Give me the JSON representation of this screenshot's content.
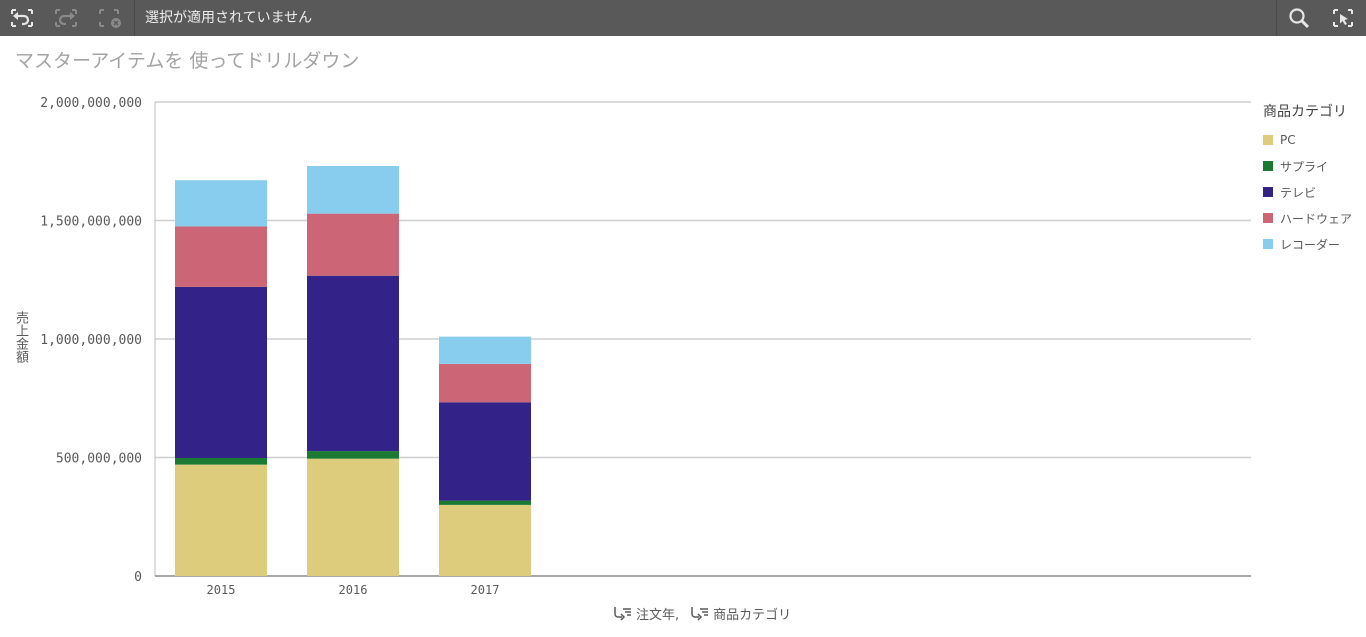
{
  "toolbar": {
    "selections_text": "選択が適用されていません",
    "buttons": [
      "back-step-icon",
      "forward-step-icon",
      "clear-selections-icon",
      "search-icon",
      "selections-tool-icon"
    ]
  },
  "sheet": {
    "title": "マスターアイテムを 使ってドリルダウン"
  },
  "chart_data": {
    "type": "bar",
    "stacked": true,
    "categories": [
      "2015",
      "2016",
      "2017"
    ],
    "series": [
      {
        "name": "PC",
        "color": "#dccc7b",
        "values": [
          470000000,
          495000000,
          300000000
        ]
      },
      {
        "name": "サプライ",
        "color": "#1a7a32",
        "values": [
          28000000,
          32000000,
          18000000
        ]
      },
      {
        "name": "テレビ",
        "color": "#332288",
        "values": [
          722000000,
          740000000,
          415000000
        ]
      },
      {
        "name": "ハードウェア",
        "color": "#cc6677",
        "values": [
          255000000,
          262000000,
          162000000
        ]
      },
      {
        "name": "レコーダー",
        "color": "#88ccee",
        "values": [
          195000000,
          201000000,
          115000000
        ]
      }
    ],
    "ylabel": "売上金額",
    "ylim": [
      0,
      2000000000
    ],
    "yticks": [
      "0",
      "500,000,000",
      "1,000,000,000",
      "1,500,000,000",
      "2,000,000,000"
    ],
    "grid": true,
    "legend_title": "商品カテゴリ",
    "legend_position": "right",
    "x_dimensions": [
      "注文年,",
      "商品カテゴリ"
    ]
  }
}
